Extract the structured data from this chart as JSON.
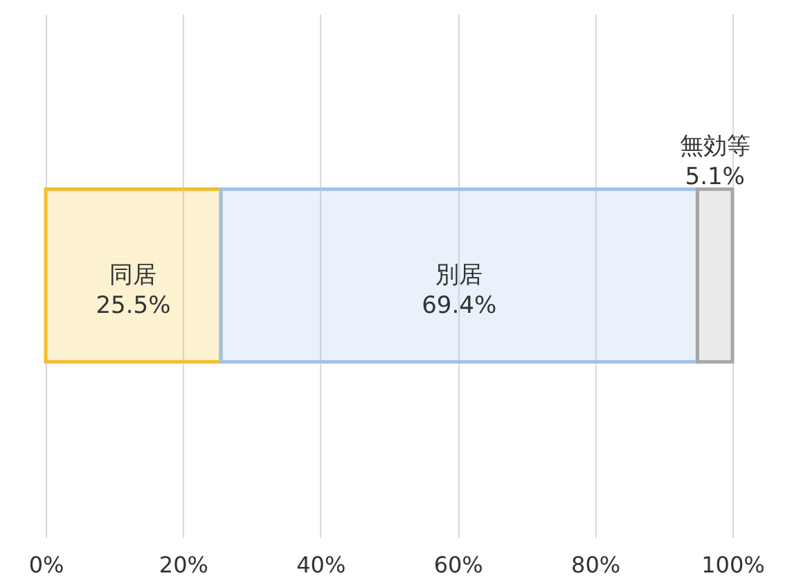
{
  "chart_data": {
    "type": "bar",
    "orientation": "horizontal",
    "stacked": true,
    "categories": [
      null
    ],
    "series": [
      {
        "name": "同居",
        "color": "#f2be2e",
        "values": [
          25.5
        ],
        "value_labels": [
          "25.5%"
        ]
      },
      {
        "name": "別居",
        "color": "#9dc3e6",
        "values": [
          69.4
        ],
        "value_labels": [
          "69.4%"
        ]
      },
      {
        "name": "無効等",
        "color": "#a6a6a6",
        "values": [
          5.1
        ],
        "value_labels": [
          "5.1%"
        ]
      }
    ],
    "xlim": [
      0,
      100
    ],
    "xticks": [
      {
        "value": 0,
        "label": "0%"
      },
      {
        "value": 20,
        "label": "20%"
      },
      {
        "value": 40,
        "label": "40%"
      },
      {
        "value": 60,
        "label": "60%"
      },
      {
        "value": 80,
        "label": "80%"
      },
      {
        "value": 100,
        "label": "100%"
      }
    ],
    "grid": "x",
    "legend": false
  }
}
